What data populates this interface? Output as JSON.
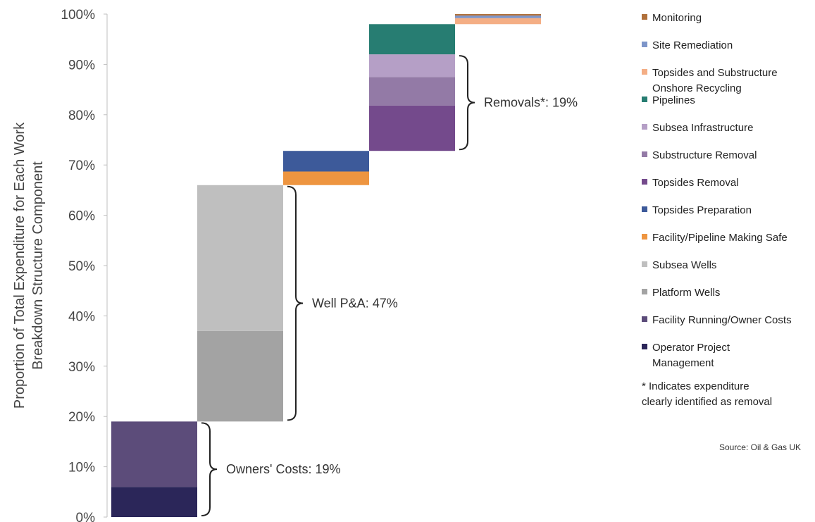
{
  "chart_data": {
    "type": "bar",
    "subtype": "stacked-waterfall",
    "ylabel": [
      "Proportion of Total Expenditure for Each Work",
      "Breakdown Structure Component"
    ],
    "ylim": [
      0,
      100
    ],
    "yticks": [
      "0%",
      "10%",
      "20%",
      "30%",
      "40%",
      "50%",
      "60%",
      "70%",
      "80%",
      "90%",
      "100%"
    ],
    "grid": false,
    "legend_position": "right",
    "categories": [
      {
        "name": "Monitoring",
        "color": "#B0703A"
      },
      {
        "name": "Site Remediation",
        "color": "#7D95C9"
      },
      {
        "name": "Topsides and Substructure Onshore Recycling",
        "label_lines": [
          "Topsides and Substructure",
          "Onshore Recycling"
        ],
        "color": "#F4AE85"
      },
      {
        "name": "Pipelines",
        "color": "#277D72"
      },
      {
        "name": "Subsea Infrastructure",
        "color": "#B59FC6"
      },
      {
        "name": "Substructure Removal",
        "color": "#937AA6"
      },
      {
        "name": "Topsides Removal",
        "color": "#744A8C"
      },
      {
        "name": "Topsides Preparation",
        "color": "#3D5A9A"
      },
      {
        "name": "Facility/Pipeline Making Safe",
        "color": "#EE9540"
      },
      {
        "name": "Subsea Wells",
        "color": "#BFBFBF"
      },
      {
        "name": "Platform Wells",
        "color": "#A3A3A3"
      },
      {
        "name": "Facility Running/Owner Costs",
        "color": "#5C4C7A"
      },
      {
        "name": "Operator Project Management",
        "label_lines": [
          "Operator Project",
          "Management"
        ],
        "color": "#2B2659"
      }
    ],
    "bars": [
      {
        "segments": [
          {
            "name": "Operator Project Management",
            "start": 0,
            "end": 6
          },
          {
            "name": "Facility Running/Owner Costs",
            "start": 6,
            "end": 19
          }
        ]
      },
      {
        "segments": [
          {
            "name": "Platform Wells",
            "start": 19,
            "end": 37
          },
          {
            "name": "Subsea Wells",
            "start": 37,
            "end": 66
          }
        ]
      },
      {
        "segments": [
          {
            "name": "Facility/Pipeline Making Safe",
            "start": 66,
            "end": 68.7
          },
          {
            "name": "Topsides Preparation",
            "start": 68.7,
            "end": 72.8
          }
        ]
      },
      {
        "segments": [
          {
            "name": "Topsides Removal",
            "start": 72.8,
            "end": 81.8
          },
          {
            "name": "Substructure Removal",
            "start": 81.8,
            "end": 87.5
          },
          {
            "name": "Subsea Infrastructure",
            "start": 87.5,
            "end": 92
          },
          {
            "name": "Pipelines",
            "start": 92,
            "end": 98
          }
        ]
      },
      {
        "segments": [
          {
            "name": "Topsides and Substructure Onshore Recycling",
            "start": 98,
            "end": 99.2
          },
          {
            "name": "Site Remediation",
            "start": 99.2,
            "end": 99.7
          },
          {
            "name": "Monitoring",
            "start": 99.7,
            "end": 100
          }
        ]
      }
    ],
    "annotations": [
      {
        "label": "Owners' Costs: 19%",
        "bar": 0,
        "from": 0,
        "to": 19
      },
      {
        "label": "Well P&A: 47%",
        "bar": 1,
        "from": 19,
        "to": 66
      },
      {
        "label": "Removals*: 19%",
        "bar": 3,
        "from": 72.8,
        "to": 92
      }
    ],
    "note_lines": [
      "* Indicates expenditure",
      "clearly identified as removal"
    ],
    "source": "Source: Oil & Gas UK"
  }
}
